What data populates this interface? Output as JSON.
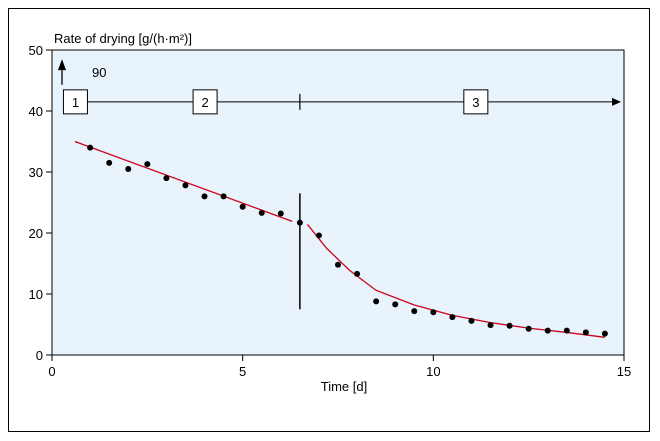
{
  "chart_data": {
    "type": "scatter",
    "title": "",
    "ylabel": "Rate of drying [g/(h·m²)]",
    "xlabel": "Time [d]",
    "xlim": [
      0,
      15
    ],
    "ylim": [
      0,
      50
    ],
    "xticks": [
      0,
      5,
      10,
      15
    ],
    "yticks": [
      0,
      10,
      20,
      30,
      40,
      50
    ],
    "grid": false,
    "background": "#e8f3fb",
    "off_scale_annotation": "90",
    "phases": [
      {
        "label": "1",
        "x": 0.3
      },
      {
        "label": "2",
        "x": 3.7
      },
      {
        "label": "3",
        "x": 10.8
      }
    ],
    "phase_line_y": 41.5,
    "phase_divider_x": 6.5,
    "phase_change_line": {
      "x": 6.5,
      "y_range": [
        7.5,
        26.5
      ]
    },
    "points": [
      [
        1.0,
        34
      ],
      [
        1.5,
        31.5
      ],
      [
        2.0,
        30.5
      ],
      [
        2.5,
        31.3
      ],
      [
        3.0,
        29
      ],
      [
        3.5,
        27.8
      ],
      [
        4.0,
        26
      ],
      [
        4.5,
        26
      ],
      [
        5.0,
        24.3
      ],
      [
        5.5,
        23.3
      ],
      [
        6.0,
        23.2
      ],
      [
        6.5,
        21.7
      ],
      [
        7.0,
        19.6
      ],
      [
        7.5,
        14.8
      ],
      [
        8.0,
        13.3
      ],
      [
        8.5,
        8.8
      ],
      [
        9.0,
        8.3
      ],
      [
        9.5,
        7.2
      ],
      [
        10.0,
        7.0
      ],
      [
        10.5,
        6.2
      ],
      [
        11.0,
        5.6
      ],
      [
        11.5,
        4.9
      ],
      [
        12.0,
        4.8
      ],
      [
        12.5,
        4.3
      ],
      [
        13.0,
        4.0
      ],
      [
        13.5,
        4.0
      ],
      [
        14.0,
        3.7
      ],
      [
        14.5,
        3.5
      ]
    ],
    "fit_lines": [
      {
        "name": "",
        "color": "#d0021b",
        "points": [
          [
            0.6,
            35
          ],
          [
            6.3,
            21.9
          ]
        ]
      },
      {
        "name": "",
        "color": "#d0021b",
        "points": [
          [
            6.7,
            21.4
          ],
          [
            7.2,
            17.5
          ],
          [
            7.8,
            13.9
          ],
          [
            8.5,
            10.6
          ],
          [
            9.5,
            8.2
          ],
          [
            10.5,
            6.5
          ],
          [
            11.5,
            5.3
          ],
          [
            12.5,
            4.4
          ],
          [
            13.5,
            3.7
          ],
          [
            14.5,
            2.9
          ]
        ]
      }
    ]
  }
}
